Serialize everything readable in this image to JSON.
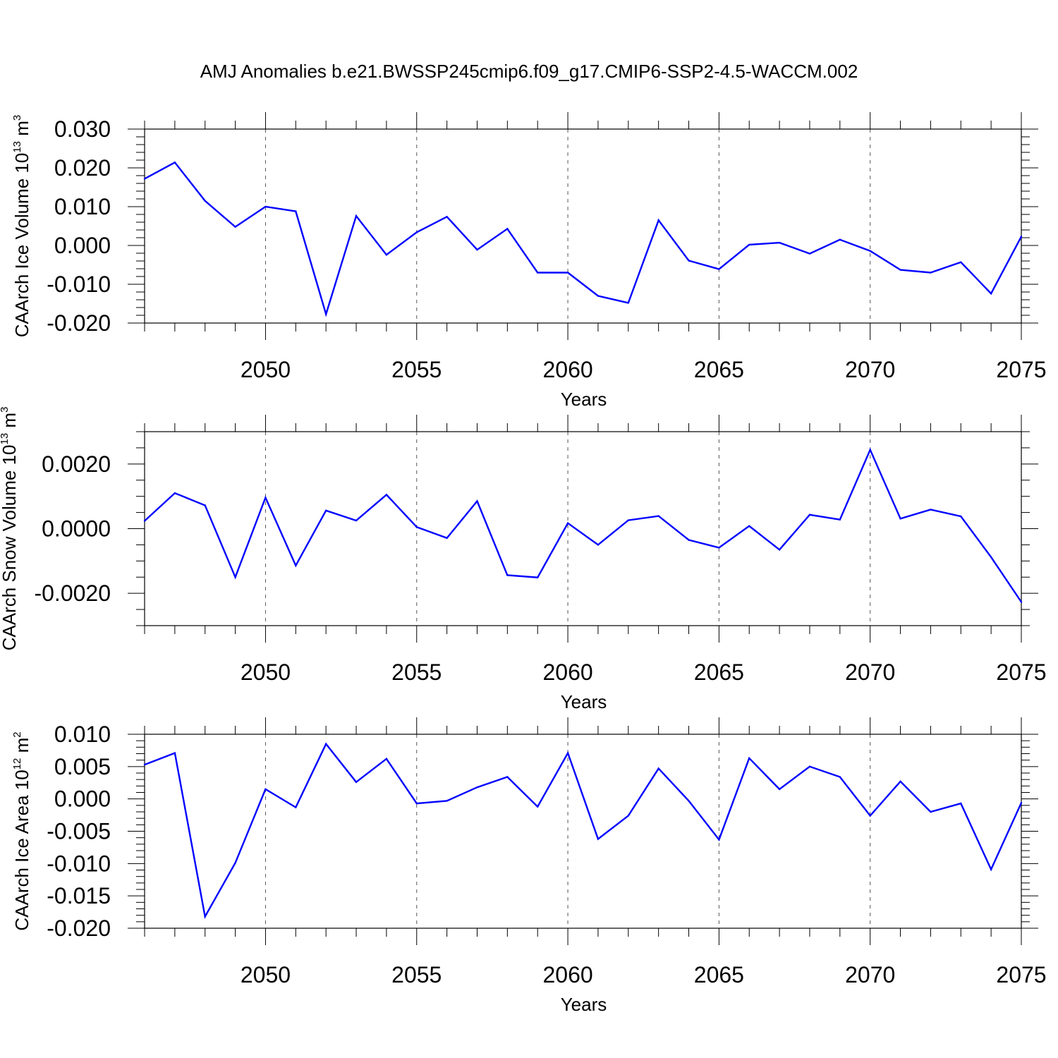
{
  "title": "AMJ Anomalies b.e21.BWSSP245cmip6.f09_g17.CMIP6-SSP2-4.5-WACCM.002",
  "colors": {
    "line": "#0000ff",
    "axis": "#000000",
    "grid": "#555555"
  },
  "chart_data": [
    {
      "type": "line",
      "xlabel": "Years",
      "ylabel": {
        "pre": "CAArch Ice Volume 10",
        "exp": "13",
        "mid": " m",
        "unit_exp": "3"
      },
      "xlim": [
        2046,
        2075
      ],
      "ylim": [
        -0.02,
        0.03
      ],
      "x_ticks": [
        2050,
        2055,
        2060,
        2065,
        2070,
        2075
      ],
      "x_tick_labels": [
        "2050",
        "2055",
        "2060",
        "2065",
        "2070",
        "2075"
      ],
      "y_ticks": [
        -0.02,
        -0.01,
        0.0,
        0.01,
        0.02,
        0.03
      ],
      "y_tick_labels": [
        "-0.020",
        "-0.010",
        "0.000",
        "0.010",
        "0.020",
        "0.030"
      ],
      "y_minor_step": 0.002,
      "grid": "vertical dashed at major x ticks",
      "x": [
        2046,
        2047,
        2048,
        2049,
        2050,
        2051,
        2052,
        2053,
        2054,
        2055,
        2056,
        2057,
        2058,
        2059,
        2060,
        2061,
        2062,
        2063,
        2064,
        2065,
        2066,
        2067,
        2068,
        2069,
        2070,
        2071,
        2072,
        2073,
        2074,
        2075
      ],
      "values": [
        0.0172,
        0.0214,
        0.0115,
        0.0048,
        0.01,
        0.0088,
        -0.0177,
        0.0076,
        -0.0024,
        0.0034,
        0.0074,
        -0.0011,
        0.0043,
        -0.007,
        -0.007,
        -0.013,
        -0.0148,
        0.0065,
        -0.0039,
        -0.0061,
        0.0002,
        0.0007,
        -0.0021,
        0.0015,
        -0.0014,
        -0.0063,
        -0.007,
        -0.0043,
        -0.0124,
        0.0023
      ]
    },
    {
      "type": "line",
      "xlabel": "Years",
      "ylabel": {
        "pre": "CAArch Snow Volume 10",
        "exp": "13",
        "mid": " m",
        "unit_exp": "3"
      },
      "xlim": [
        2046,
        2075
      ],
      "ylim": [
        -0.003,
        0.003
      ],
      "x_ticks": [
        2050,
        2055,
        2060,
        2065,
        2070,
        2075
      ],
      "x_tick_labels": [
        "2050",
        "2055",
        "2060",
        "2065",
        "2070",
        "2075"
      ],
      "y_ticks": [
        -0.002,
        0.0,
        0.002
      ],
      "y_tick_labels": [
        "-0.0020",
        "0.0000",
        "0.0020"
      ],
      "y_minor_step": 0.0005,
      "grid": "vertical dashed at major x ticks",
      "x": [
        2046,
        2047,
        2048,
        2049,
        2050,
        2051,
        2052,
        2053,
        2054,
        2055,
        2056,
        2057,
        2058,
        2059,
        2060,
        2061,
        2062,
        2063,
        2064,
        2065,
        2066,
        2067,
        2068,
        2069,
        2070,
        2071,
        2072,
        2073,
        2074,
        2075
      ],
      "values": [
        0.00024,
        0.0011,
        0.00072,
        -0.0015,
        0.00096,
        -0.00114,
        0.00056,
        0.00025,
        0.00105,
        5e-05,
        -0.00029,
        0.00085,
        -0.00144,
        -0.00151,
        0.00017,
        -0.0005,
        0.00026,
        0.00039,
        -0.00035,
        -0.00059,
        8e-05,
        -0.00065,
        0.00043,
        0.00028,
        0.00244,
        0.00031,
        0.00059,
        0.00038,
        -0.00088,
        -0.00227
      ]
    },
    {
      "type": "line",
      "xlabel": "Years",
      "ylabel": {
        "pre": "CAArch Ice Area 10",
        "exp": "12",
        "mid": " m",
        "unit_exp": "2"
      },
      "xlim": [
        2046,
        2075
      ],
      "ylim": [
        -0.02,
        0.01
      ],
      "x_ticks": [
        2050,
        2055,
        2060,
        2065,
        2070,
        2075
      ],
      "x_tick_labels": [
        "2050",
        "2055",
        "2060",
        "2065",
        "2070",
        "2075"
      ],
      "y_ticks": [
        -0.02,
        -0.015,
        -0.01,
        -0.005,
        0.0,
        0.005,
        0.01
      ],
      "y_tick_labels": [
        "-0.020",
        "-0.015",
        "-0.010",
        "-0.005",
        "0.000",
        "0.005",
        "0.010"
      ],
      "y_minor_step": 0.001,
      "grid": "vertical dashed at major x ticks",
      "x": [
        2046,
        2047,
        2048,
        2049,
        2050,
        2051,
        2052,
        2053,
        2054,
        2055,
        2056,
        2057,
        2058,
        2059,
        2060,
        2061,
        2062,
        2063,
        2064,
        2065,
        2066,
        2067,
        2068,
        2069,
        2070,
        2071,
        2072,
        2073,
        2074,
        2075
      ],
      "values": [
        0.0053,
        0.0071,
        -0.0182,
        -0.0099,
        0.0015,
        -0.0013,
        0.0085,
        0.0026,
        0.0062,
        -0.0007,
        -0.0003,
        0.0018,
        0.0034,
        -0.0012,
        0.0071,
        -0.0062,
        -0.0026,
        0.0047,
        -0.0003,
        -0.0063,
        0.0063,
        0.0015,
        0.005,
        0.0034,
        -0.0026,
        0.0027,
        -0.002,
        -0.0007,
        -0.0109,
        -0.0006
      ]
    }
  ]
}
